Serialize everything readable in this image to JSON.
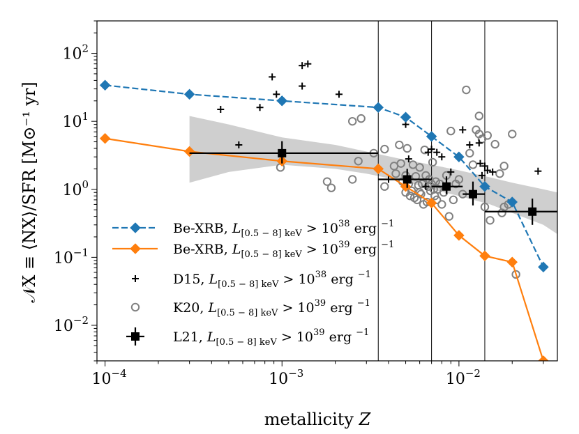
{
  "chart_data": {
    "type": "scatter",
    "xscale": "log",
    "yscale": "log",
    "xlim": [
      9e-05,
      0.036
    ],
    "ylim": [
      0.003,
      300
    ],
    "xlabel_text": "metallicity ",
    "xlabel_var": "Z",
    "ylabel": "𝒩X ≡ ⟨NX⟩/SFR [M⊙⁻¹ yr]",
    "x_ticks": [
      {
        "value": 0.0001,
        "base": "10",
        "exp": "−4"
      },
      {
        "value": 0.001,
        "base": "10",
        "exp": "−3"
      },
      {
        "value": 0.01,
        "base": "10",
        "exp": "−2"
      }
    ],
    "y_ticks": [
      {
        "value": 0.01,
        "base": "10",
        "exp": "−2"
      },
      {
        "value": 0.1,
        "base": "10",
        "exp": "−1"
      },
      {
        "value": 1,
        "base": "10",
        "exp": "0"
      },
      {
        "value": 10,
        "base": "10",
        "exp": "1"
      },
      {
        "value": 100,
        "base": "10",
        "exp": "2"
      }
    ],
    "vlines": [
      0.0035,
      0.007,
      0.014
    ],
    "band": {
      "x": [
        0.0003,
        0.0005,
        0.001,
        0.002,
        0.003,
        0.005,
        0.007,
        0.01,
        0.015,
        0.02,
        0.03,
        0.036
      ],
      "upper": [
        12,
        9.0,
        5.8,
        4.5,
        3.6,
        2.7,
        2.3,
        1.9,
        1.5,
        1.25,
        1.0,
        0.9
      ],
      "lower": [
        1.25,
        1.8,
        2.3,
        2.0,
        1.7,
        1.3,
        1.0,
        0.8,
        0.6,
        0.45,
        0.3,
        0.22
      ]
    },
    "series": [
      {
        "name": "Be-XRB 38",
        "color": "#1f77b4",
        "style": "dashed",
        "marker": "diamond",
        "x": [
          0.0001,
          0.0003,
          0.001,
          0.0035,
          0.005,
          0.007,
          0.01,
          0.014,
          0.02,
          0.03
        ],
        "y": [
          34,
          25,
          20,
          16,
          11.5,
          6.0,
          3.0,
          1.1,
          0.65,
          0.072
        ]
      },
      {
        "name": "Be-XRB 39",
        "color": "#ff7f0e",
        "style": "solid",
        "marker": "diamond",
        "x": [
          0.0001,
          0.0003,
          0.001,
          0.0035,
          0.005,
          0.007,
          0.01,
          0.014,
          0.02,
          0.03
        ],
        "y": [
          5.6,
          3.6,
          2.6,
          2.0,
          1.1,
          0.63,
          0.21,
          0.105,
          0.085,
          0.003
        ]
      }
    ],
    "d15": {
      "x": [
        0.00045,
        0.00057,
        0.00075,
        0.00088,
        0.00093,
        0.0013,
        0.0013,
        0.0014,
        0.0021,
        0.004,
        0.005,
        0.0052,
        0.0065,
        0.0067,
        0.007,
        0.0075,
        0.008,
        0.009,
        0.0105,
        0.0115,
        0.013,
        0.0132,
        0.0135,
        0.014,
        0.0145,
        0.0155,
        0.028
      ],
      "y": [
        15,
        4.5,
        16,
        45,
        25,
        66,
        33,
        70,
        25,
        1.4,
        9,
        2.8,
        1.1,
        3.5,
        3.9,
        3.5,
        3.0,
        1.8,
        7.5,
        4.5,
        4.8,
        2.4,
        1.6,
        2.2,
        1.9,
        1.8,
        1.85
      ]
    },
    "k20": {
      "x": [
        0.00098,
        0.0018,
        0.0019,
        0.0025,
        0.0025,
        0.0027,
        0.0028,
        0.0033,
        0.0038,
        0.0038,
        0.0043,
        0.0044,
        0.0046,
        0.0047,
        0.0048,
        0.005,
        0.005,
        0.0051,
        0.0052,
        0.0053,
        0.0054,
        0.0055,
        0.0056,
        0.0057,
        0.0058,
        0.0059,
        0.006,
        0.006,
        0.0061,
        0.0062,
        0.0063,
        0.0064,
        0.0065,
        0.0066,
        0.0067,
        0.0068,
        0.0069,
        0.007,
        0.0071,
        0.0072,
        0.0073,
        0.0074,
        0.0075,
        0.0076,
        0.0078,
        0.008,
        0.0082,
        0.0085,
        0.0088,
        0.009,
        0.0093,
        0.0096,
        0.01,
        0.0105,
        0.011,
        0.0115,
        0.012,
        0.0125,
        0.013,
        0.013,
        0.0135,
        0.014,
        0.0145,
        0.015,
        0.016,
        0.017,
        0.0175,
        0.018,
        0.018,
        0.019,
        0.02,
        0.021
      ],
      "y": [
        2.1,
        1.3,
        1.05,
        1.4,
        10,
        2.6,
        11,
        3.4,
        3.9,
        1.1,
        2.2,
        1.7,
        4.5,
        2.4,
        1.3,
        0.9,
        1.6,
        4.0,
        1.2,
        0.8,
        0.95,
        2.3,
        0.75,
        1.55,
        0.7,
        1.15,
        0.9,
        2.1,
        0.85,
        1.2,
        0.6,
        3.8,
        1.6,
        0.65,
        1.1,
        1.4,
        0.95,
        1.2,
        2.5,
        1.0,
        0.8,
        1.3,
        0.7,
        1.0,
        1.2,
        0.6,
        0.9,
        1.6,
        0.4,
        7.2,
        0.7,
        1.2,
        1.4,
        0.85,
        29,
        3.4,
        2.3,
        7.5,
        6.5,
        12,
        5.5,
        0.55,
        6.2,
        0.35,
        4.6,
        1.7,
        0.45,
        0.55,
        2.2,
        0.6,
        6.5,
        0.056
      ]
    },
    "l21": [
      {
        "x": 0.001,
        "y": 3.4,
        "xlo": 0.0003,
        "xhi": 0.0035,
        "ylo": 2.4,
        "yhi": 5.1
      },
      {
        "x": 0.0051,
        "y": 1.4,
        "xlo": 0.0035,
        "xhi": 0.007,
        "ylo": 1.05,
        "yhi": 2.0
      },
      {
        "x": 0.0085,
        "y": 1.1,
        "xlo": 0.007,
        "xhi": 0.0105,
        "ylo": 0.85,
        "yhi": 1.55
      },
      {
        "x": 0.012,
        "y": 0.85,
        "xlo": 0.0105,
        "xhi": 0.014,
        "ylo": 0.58,
        "yhi": 1.3
      },
      {
        "x": 0.026,
        "y": 0.47,
        "xlo": 0.014,
        "xhi": 0.036,
        "ylo": 0.3,
        "yhi": 0.73
      }
    ],
    "legend": {
      "position": "lower-left",
      "items": [
        {
          "key": "bexrb38",
          "text": "Be-XRB, ",
          "L": "L",
          "sub": "[0.5 − 8] keV",
          "rel": " > 10",
          "exp": "38",
          "unit": " erg ",
          "unitexp": "−1"
        },
        {
          "key": "bexrb39",
          "text": "Be-XRB, ",
          "L": "L",
          "sub": "[0.5 − 8] keV",
          "rel": " > 10",
          "exp": "39",
          "unit": " erg ",
          "unitexp": "−1"
        },
        {
          "key": "d15",
          "text": "D15, ",
          "L": "L",
          "sub": "[0.5 − 8] keV",
          "rel": " > 10",
          "exp": "38",
          "unit": " erg ",
          "unitexp": "−1"
        },
        {
          "key": "k20",
          "text": "K20, ",
          "L": "L",
          "sub": "[0.5 − 8] keV",
          "rel": " > 10",
          "exp": "39",
          "unit": " erg ",
          "unitexp": "−1"
        },
        {
          "key": "l21",
          "text": "L21, ",
          "L": "L",
          "sub": "[0.5 − 8] keV",
          "rel": " > 10",
          "exp": "39",
          "unit": " erg ",
          "unitexp": "−1"
        }
      ]
    }
  }
}
